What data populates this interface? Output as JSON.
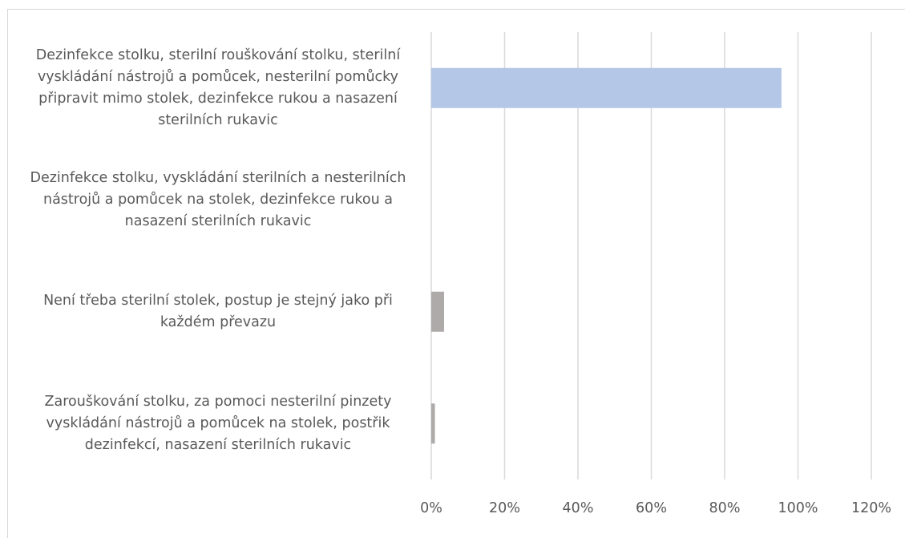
{
  "chart_data": {
    "type": "bar",
    "orientation": "horizontal",
    "categories": [
      [
        "Dezinfekce stolku, sterilní rouškování stolku, sterilní",
        "vyskládání nástrojů a pomůcek, nesterilní pomůcky",
        "připravit mimo stolek, dezinfekce rukou a nasazení",
        "sterilních rukavic"
      ],
      [
        "Dezinfekce stolku, vyskládání sterilních a nesterilních",
        "nástrojů a pomůcek na stolek, dezinfekce rukou a",
        "nasazení sterilních rukavic"
      ],
      [
        "Není třeba sterilní stolek, postup je stejný jako při",
        "každém převazu"
      ],
      [
        "Zarouškování stolku, za pomoci nesterilní pinzety",
        "vyskládání nástrojů a pomůcek na stolek, postřik",
        "dezinfekcí, nasazení sterilních rukavic"
      ]
    ],
    "values": [
      95.5,
      0,
      3.5,
      1
    ],
    "bar_colors": [
      "#b4c7e7",
      "#b4c7e7",
      "#aeaaaa",
      "#aeaaaa"
    ],
    "xlim": [
      0,
      120
    ],
    "xticks": [
      "0%",
      "20%",
      "40%",
      "60%",
      "80%",
      "100%",
      "120%"
    ],
    "grid": true,
    "gridline_color": "#d9d9d9",
    "title": "",
    "xlabel": "",
    "ylabel": ""
  }
}
